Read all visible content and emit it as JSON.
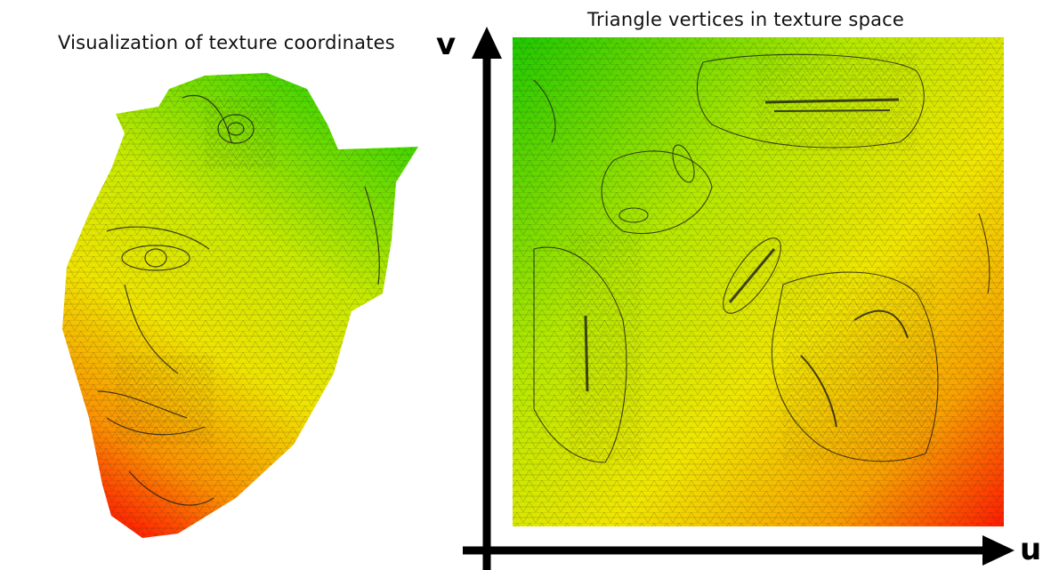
{
  "left_panel": {
    "title": "Visualization of texture coordinates"
  },
  "right_panel": {
    "title": "Triangle vertices in texture space",
    "axis_u_label": "u",
    "axis_v_label": "v"
  },
  "colors": {
    "gradient_green": "#1fd400",
    "gradient_yellow": "#f2f000",
    "gradient_red": "#ff1a00",
    "mesh_line": "#1a1a1a",
    "axis": "#000000"
  }
}
